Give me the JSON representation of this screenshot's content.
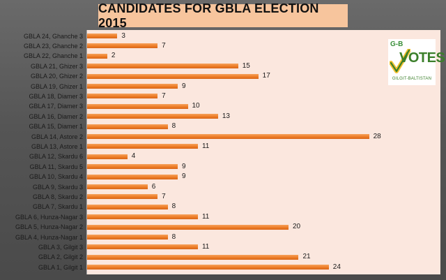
{
  "title": "CANDIDATES FOR GBLA ELECTION 2015",
  "logo": {
    "top_text": "G-B",
    "main_text": "VOTES",
    "sub_text": "GILGIT-BALTISTAN",
    "colors": {
      "green": "#3b7f2a",
      "yellow": "#f2c230"
    }
  },
  "colors": {
    "bar": "#ec7a23",
    "plot_bg": "#fbe7de",
    "title_bg": "#f7c59d"
  },
  "chart_data": {
    "type": "bar",
    "orientation": "horizontal",
    "title": "CANDIDATES FOR GBLA ELECTION 2015",
    "xlabel": "",
    "ylabel": "",
    "xlim": [
      0,
      28
    ],
    "grid": false,
    "categories": [
      "GBLA 24, Ghanche 3",
      "GBLA 23, Ghanche 2",
      "GBLA 22, Ghanche 1",
      "GBLA 21, Ghizer 3",
      "GBLA 20, Ghizer 2",
      "GBLA 19, Ghizer 1",
      "GBLA 18, Diamer 3",
      "GBLA 17, Diamer 3",
      "GBLA 16, Diamer 2",
      "GBLA 15, Diamer 1",
      "GBLA 14, Astore 2",
      "GBLA 13, Astore 1",
      "GBLA 12, Skardu 6",
      "GBLA 11, Skardu 5",
      "GBLA 10, Skardu 4",
      "GBLA 9, Skardu 3",
      "GBLA 8, Skardu 2",
      "GBLA 7, Skardu 1",
      "GBLA 6, Hunza-Nagar 3",
      "GBLA 5, Hunza-Nagar 2",
      "GBLA 4, Hunza-Nagar 1",
      "GBLA 3, Gilgit 3",
      "GBLA 2, Gilgit 2",
      "GBLA 1, Gilgit 1"
    ],
    "values": [
      3,
      7,
      2,
      15,
      17,
      9,
      7,
      10,
      13,
      8,
      28,
      11,
      4,
      9,
      9,
      6,
      7,
      8,
      11,
      20,
      8,
      11,
      21,
      24
    ]
  }
}
